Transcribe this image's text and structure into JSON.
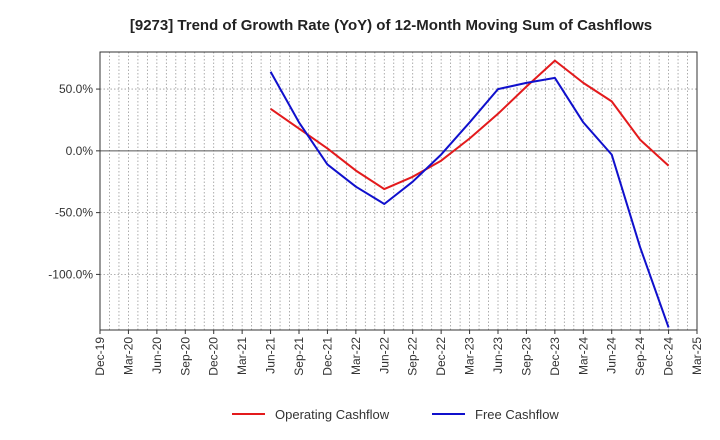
{
  "chart_data": {
    "type": "line",
    "title": "[9273]  Trend of Growth Rate (YoY) of 12-Month Moving Sum of Cashflows",
    "xlabel": "",
    "ylabel": "",
    "ylim": [
      -145,
      80
    ],
    "y_ticks": [
      50,
      0,
      -50,
      -100
    ],
    "y_tick_labels": [
      "50.0%",
      "0.0%",
      "-50.0%",
      "-100.0%"
    ],
    "x": [
      "Dec-19",
      "Mar-20",
      "Jun-20",
      "Sep-20",
      "Dec-20",
      "Mar-21",
      "Jun-21",
      "Sep-21",
      "Dec-21",
      "Mar-22",
      "Jun-22",
      "Sep-22",
      "Dec-22",
      "Mar-23",
      "Jun-23",
      "Sep-23",
      "Dec-23",
      "Mar-24",
      "Jun-24",
      "Sep-24",
      "Dec-24",
      "Mar-25"
    ],
    "grid": true,
    "legend_position": "bottom-center",
    "series": [
      {
        "name": "Operating Cashflow",
        "color": "#e31a1c",
        "values": [
          null,
          null,
          null,
          null,
          null,
          null,
          34,
          18,
          2,
          -16,
          -31,
          -21,
          -8,
          10,
          30,
          52,
          73,
          55,
          40,
          9,
          -12,
          null
        ]
      },
      {
        "name": "Free Cashflow",
        "color": "#1010cc",
        "values": [
          null,
          null,
          null,
          null,
          null,
          null,
          64,
          23,
          -11,
          -29,
          -43,
          -25,
          -3,
          23,
          50,
          55,
          59,
          23,
          -3,
          -78,
          -143,
          null
        ]
      }
    ]
  }
}
